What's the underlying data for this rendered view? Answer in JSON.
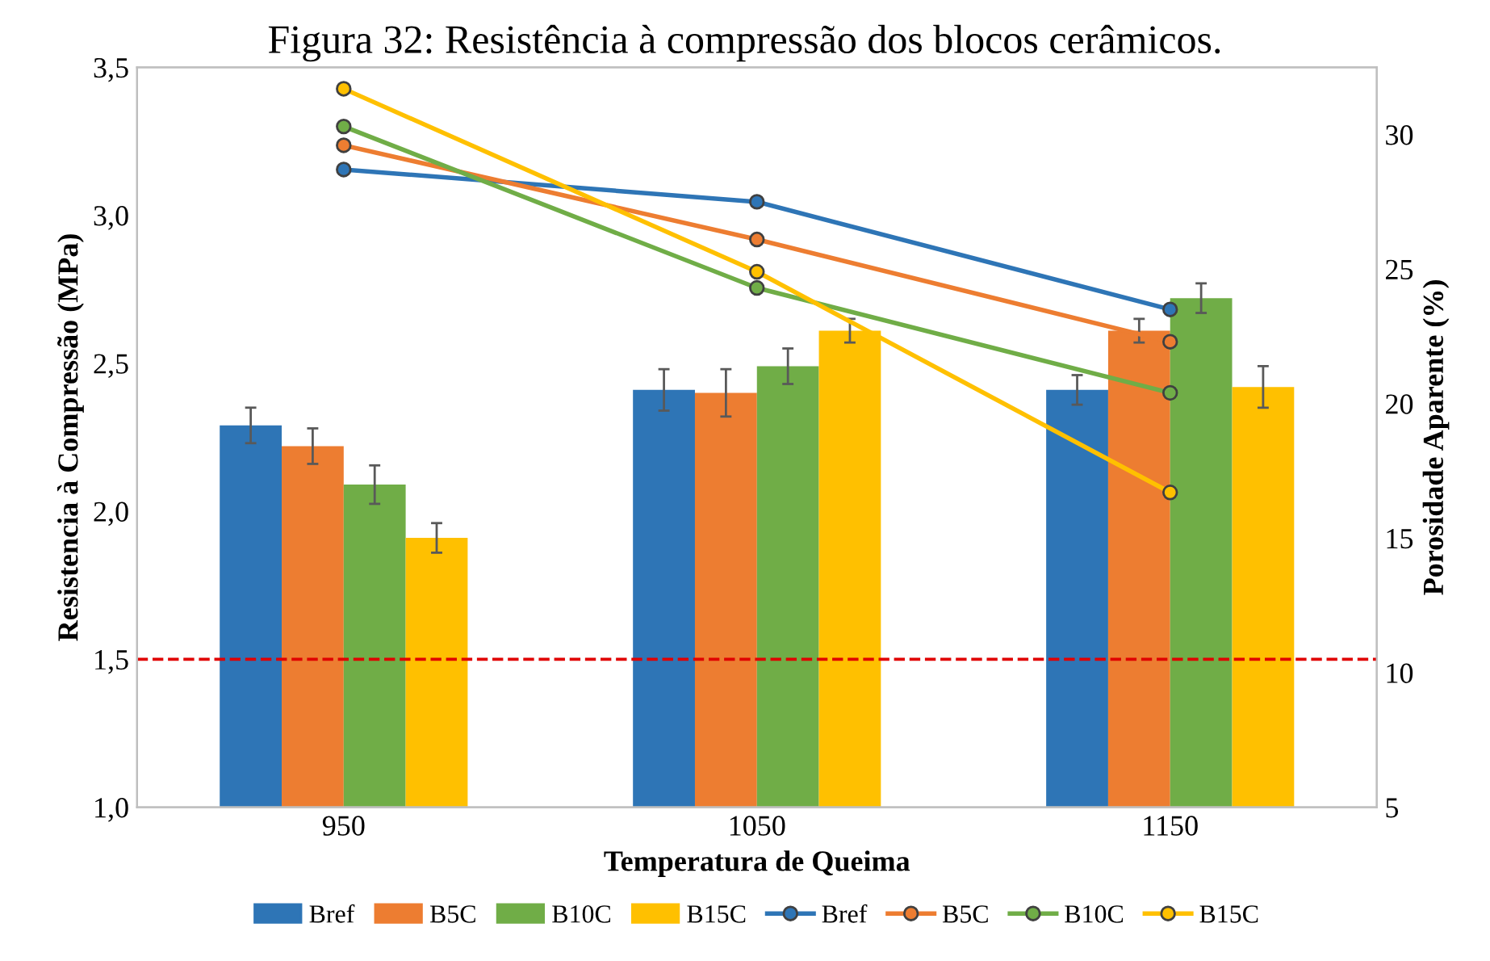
{
  "chart_data": {
    "type": "bar",
    "title": "Figura 32: Resistência à compressão dos blocos cerâmicos.",
    "xlabel": "Temperatura de Queima",
    "ylabel": "Resistencia à Compressão (MPa)",
    "y2label": "Porosidade Aparente (%)",
    "categories": [
      "950",
      "1050",
      "1150"
    ],
    "series": [
      {
        "name": "Bref",
        "color": "#2e75b6",
        "values": [
          2.29,
          2.41,
          2.41
        ],
        "errors": [
          0.06,
          0.07,
          0.05
        ]
      },
      {
        "name": "B5C",
        "color": "#ed7d31",
        "values": [
          2.22,
          2.4,
          2.61
        ],
        "errors": [
          0.06,
          0.08,
          0.04
        ]
      },
      {
        "name": "B10C",
        "color": "#70ad47",
        "values": [
          2.09,
          2.49,
          2.72
        ],
        "errors": [
          0.065,
          0.06,
          0.05
        ]
      },
      {
        "name": "B15C",
        "color": "#ffc000",
        "values": [
          1.91,
          2.61,
          2.42
        ],
        "errors": [
          0.05,
          0.04,
          0.07
        ]
      },
      {
        "name": "Bref",
        "type": "line",
        "axis": "y2",
        "color": "#2e75b6",
        "values": [
          28.7,
          27.5,
          23.5
        ]
      },
      {
        "name": "B5C",
        "type": "line",
        "axis": "y2",
        "color": "#ed7d31",
        "values": [
          29.6,
          26.1,
          22.3
        ]
      },
      {
        "name": "B10C",
        "type": "line",
        "axis": "y2",
        "color": "#70ad47",
        "values": [
          30.3,
          24.3,
          20.4
        ]
      },
      {
        "name": "B15C",
        "type": "line",
        "axis": "y2",
        "color": "#ffc000",
        "values": [
          31.7,
          24.9,
          16.7
        ]
      }
    ],
    "ylim": [
      1.0,
      3.5
    ],
    "yticks": [
      {
        "value": 1.0,
        "label": "1,0"
      },
      {
        "value": 1.5,
        "label": "1,5"
      },
      {
        "value": 2.0,
        "label": "2,0"
      },
      {
        "value": 2.5,
        "label": "2,5"
      },
      {
        "value": 3.0,
        "label": "3,0"
      },
      {
        "value": 3.5,
        "label": "3,5"
      }
    ],
    "y2lim": [
      5,
      32.5
    ],
    "y2ticks": [
      5,
      10,
      15,
      20,
      25,
      30
    ],
    "ref_lines": [
      {
        "axis": "y",
        "value": 1.5,
        "color": "#e00000",
        "line_style": "dashed"
      }
    ],
    "marker": "circle",
    "legend": "bottom",
    "grid": false
  }
}
